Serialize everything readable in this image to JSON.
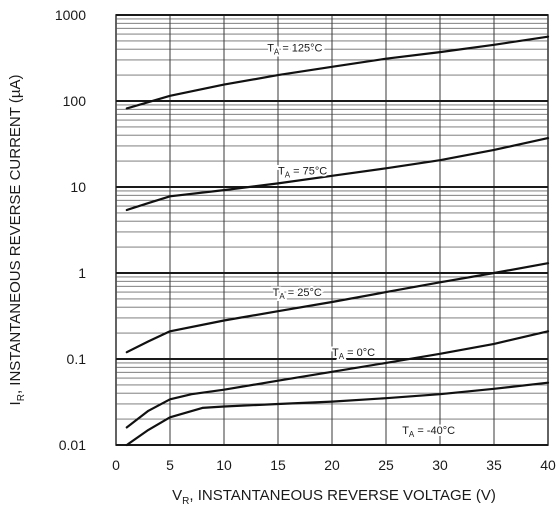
{
  "chart_data": {
    "type": "line",
    "title": "",
    "xlabel": {
      "prefix": "V",
      "subscript": "R",
      "rest": ", INSTANTANEOUS REVERSE VOLTAGE (V)"
    },
    "ylabel": {
      "prefix": "I",
      "subscript": "R",
      "rest": ", INSTANTANEOUS REVERSE CURRENT (µA)"
    },
    "xlim": [
      0,
      40
    ],
    "ylim": [
      0.01,
      1000
    ],
    "y_scale": "log",
    "grid": true,
    "x_ticks": [
      {
        "value": 0,
        "label": "0"
      },
      {
        "value": 5,
        "label": "5"
      },
      {
        "value": 10,
        "label": "10"
      },
      {
        "value": 15,
        "label": "15"
      },
      {
        "value": 20,
        "label": "20"
      },
      {
        "value": 25,
        "label": "25"
      },
      {
        "value": 30,
        "label": "30"
      },
      {
        "value": 35,
        "label": "35"
      },
      {
        "value": 40,
        "label": "40"
      }
    ],
    "y_ticks": [
      {
        "value": 0.01,
        "label": "0.01"
      },
      {
        "value": 0.1,
        "label": "0.1"
      },
      {
        "value": 1,
        "label": "1"
      },
      {
        "value": 10,
        "label": "10"
      },
      {
        "value": 100,
        "label": "100"
      },
      {
        "value": 1000,
        "label": "1000"
      }
    ],
    "series": [
      {
        "key": "t125",
        "label": {
          "prefix": "T",
          "subscript": "A",
          "rest": " = 125°C"
        },
        "label_at": [
          14,
          420
        ],
        "x": [
          1,
          5,
          10,
          15,
          20,
          25,
          30,
          35,
          40
        ],
        "y": [
          82,
          115,
          155,
          200,
          250,
          310,
          370,
          450,
          560
        ]
      },
      {
        "key": "t75",
        "label": {
          "prefix": "T",
          "subscript": "A",
          "rest": " = 75°C"
        },
        "label_at": [
          15,
          15.5
        ],
        "x": [
          1,
          3,
          5,
          10,
          15,
          20,
          25,
          30,
          35,
          40
        ],
        "y": [
          5.4,
          6.5,
          7.8,
          9.2,
          11,
          13.5,
          16.5,
          20.5,
          27,
          37
        ]
      },
      {
        "key": "t25",
        "label": {
          "prefix": "T",
          "subscript": "A",
          "rest": " = 25°C"
        },
        "label_at": [
          14.5,
          0.6
        ],
        "x": [
          1,
          3,
          5,
          10,
          15,
          20,
          25,
          30,
          35,
          40
        ],
        "y": [
          0.12,
          0.16,
          0.21,
          0.28,
          0.36,
          0.46,
          0.6,
          0.78,
          1.0,
          1.3
        ]
      },
      {
        "key": "t0",
        "label": {
          "prefix": "T",
          "subscript": "A",
          "rest": " = 0°C"
        },
        "label_at": [
          20,
          0.12
        ],
        "x": [
          1,
          3,
          5,
          7,
          10,
          15,
          20,
          25,
          30,
          35,
          40
        ],
        "y": [
          0.016,
          0.025,
          0.034,
          0.039,
          0.044,
          0.056,
          0.071,
          0.09,
          0.115,
          0.15,
          0.21
        ]
      },
      {
        "key": "tm40",
        "label": {
          "prefix": "T",
          "subscript": "A",
          "rest": " = -40°C"
        },
        "label_at": [
          26.5,
          0.015
        ],
        "x": [
          1,
          3,
          5,
          8,
          10,
          15,
          20,
          25,
          30,
          35,
          40
        ],
        "y": [
          0.01,
          0.015,
          0.021,
          0.027,
          0.028,
          0.03,
          0.032,
          0.035,
          0.039,
          0.045,
          0.053
        ]
      }
    ]
  }
}
